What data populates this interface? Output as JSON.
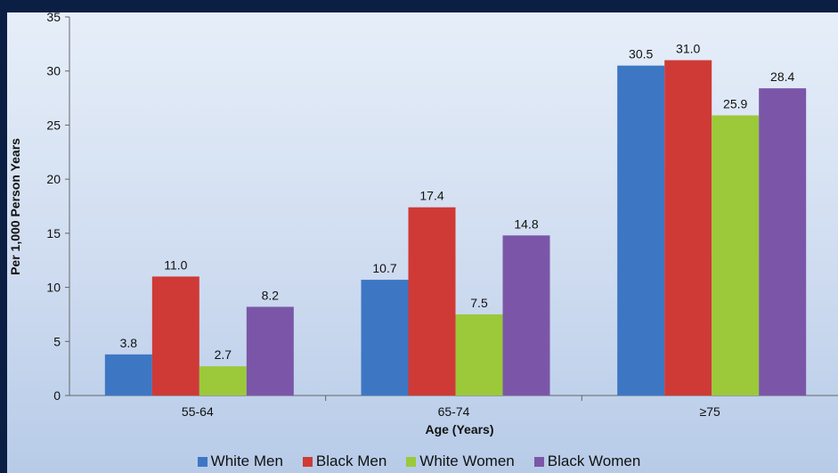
{
  "chart_data": {
    "type": "bar",
    "xlabel": "Age (Years)",
    "ylabel": "Per 1,000 Person Years",
    "ylim": [
      0,
      35
    ],
    "yticks": [
      0,
      5,
      10,
      15,
      20,
      25,
      30,
      35
    ],
    "categories": [
      "55-64",
      "65-74",
      "≥75"
    ],
    "series": [
      {
        "name": "White Men",
        "color": "#3d77c4",
        "values": [
          3.8,
          10.7,
          30.5
        ]
      },
      {
        "name": "Black Men",
        "color": "#cf3a36",
        "values": [
          11.0,
          17.4,
          31.0
        ]
      },
      {
        "name": "White Women",
        "color": "#9bc93a",
        "values": [
          2.7,
          7.5,
          25.9
        ]
      },
      {
        "name": "Black Women",
        "color": "#7b56a8",
        "values": [
          8.2,
          14.8,
          28.4
        ]
      }
    ],
    "value_labels": [
      [
        "3.8",
        "10.7",
        "30.5"
      ],
      [
        "11.0",
        "17.4",
        "31.0"
      ],
      [
        "2.7",
        "7.5",
        "25.9"
      ],
      [
        "8.2",
        "14.8",
        "28.4"
      ]
    ],
    "legend_position": "bottom",
    "grid": false
  }
}
